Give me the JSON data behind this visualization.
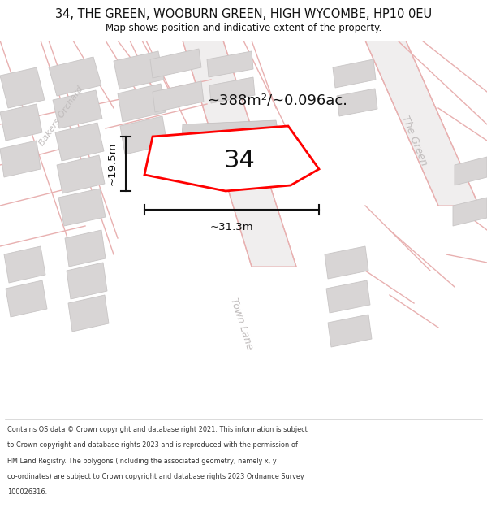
{
  "title_line1": "34, THE GREEN, WOOBURN GREEN, HIGH WYCOMBE, HP10 0EU",
  "title_line2": "Map shows position and indicative extent of the property.",
  "footer_lines": [
    "Contains OS data © Crown copyright and database right 2021. This information is subject",
    "to Crown copyright and database rights 2023 and is reproduced with the permission of",
    "HM Land Registry. The polygons (including the associated geometry, namely x, y",
    "co-ordinates) are subject to Crown copyright and database rights 2023 Ordnance Survey",
    "100026316."
  ],
  "area_label": "~388m²/~0.096ac.",
  "number_label": "34",
  "dim_width": "~31.3m",
  "dim_height": "~19.5m",
  "road_left": "Bakers Orchard",
  "road_right": "The Green",
  "road_bottom": "Town Lane",
  "map_bg": "#f7f6f6",
  "building_fill": "#d8d5d5",
  "building_edge": "#c8c5c5",
  "road_line": "#e8b0b0",
  "plot_fill": "#ffffff",
  "plot_edge": "#ff0000",
  "text_black": "#111111",
  "text_road": "#c0bcbc",
  "text_footer": "#333333",
  "white": "#ffffff"
}
